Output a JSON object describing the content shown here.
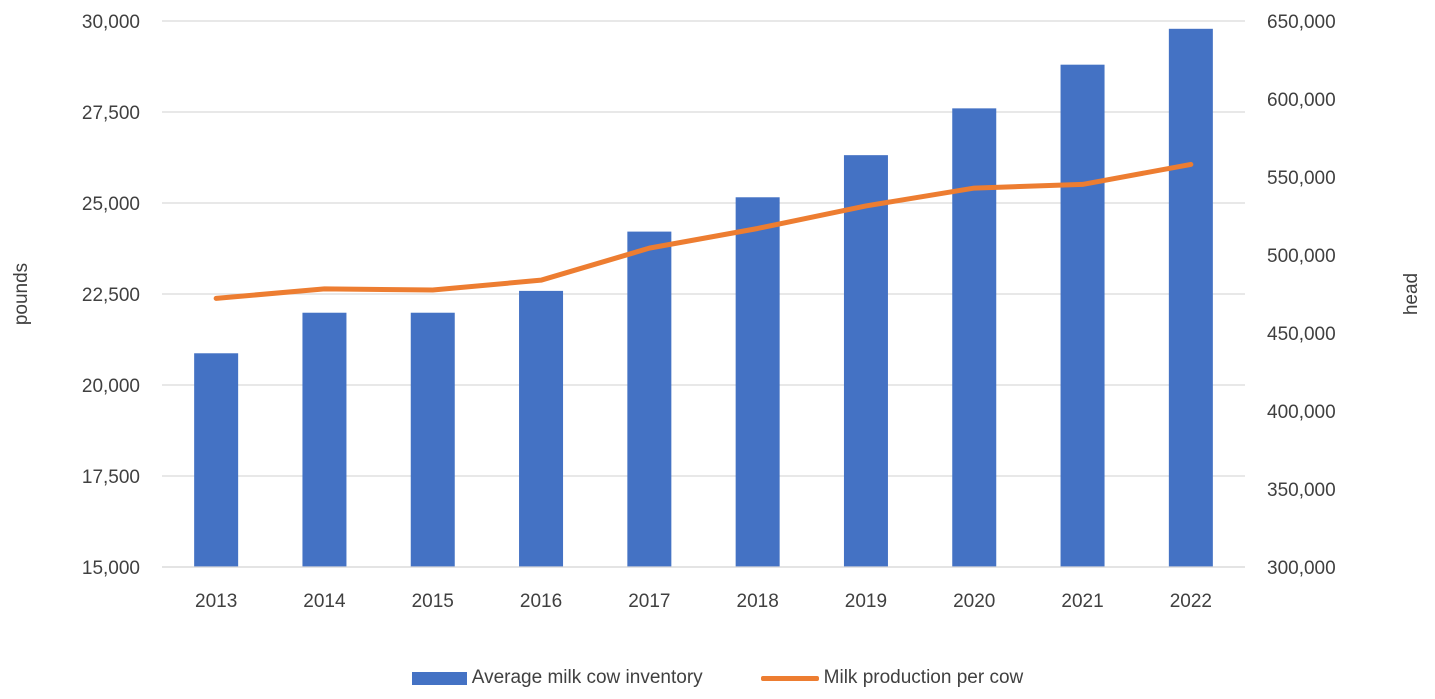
{
  "chart_data": {
    "type": "bar",
    "categories": [
      "2013",
      "2014",
      "2015",
      "2016",
      "2017",
      "2018",
      "2019",
      "2020",
      "2021",
      "2022"
    ],
    "series": [
      {
        "name": "Average milk cow inventory",
        "type": "bar",
        "axis": "right",
        "values": [
          437000,
          463000,
          463000,
          477000,
          515000,
          537000,
          564000,
          594000,
          622000,
          645000
        ]
      },
      {
        "name": "Milk production per cow",
        "type": "line",
        "axis": "left",
        "values": [
          22380,
          22640,
          22610,
          22880,
          23760,
          24300,
          24920,
          25410,
          25510,
          26060
        ]
      }
    ],
    "y_left": {
      "label": "pounds",
      "lim": [
        15000,
        30000
      ],
      "ticks": [
        "15,000",
        "17,500",
        "20,000",
        "22,500",
        "25,000",
        "27,500",
        "30,000"
      ]
    },
    "y_right": {
      "label": "head",
      "lim": [
        300000,
        650000
      ],
      "ticks": [
        "300,000",
        "350,000",
        "400,000",
        "450,000",
        "500,000",
        "550,000",
        "600,000",
        "650,000"
      ]
    },
    "grid": true,
    "legend_position": "bottom",
    "colors": {
      "bar": "#4472C4",
      "line": "#ED7D31",
      "grid": "#D9D9D9",
      "text": "#404040"
    }
  }
}
